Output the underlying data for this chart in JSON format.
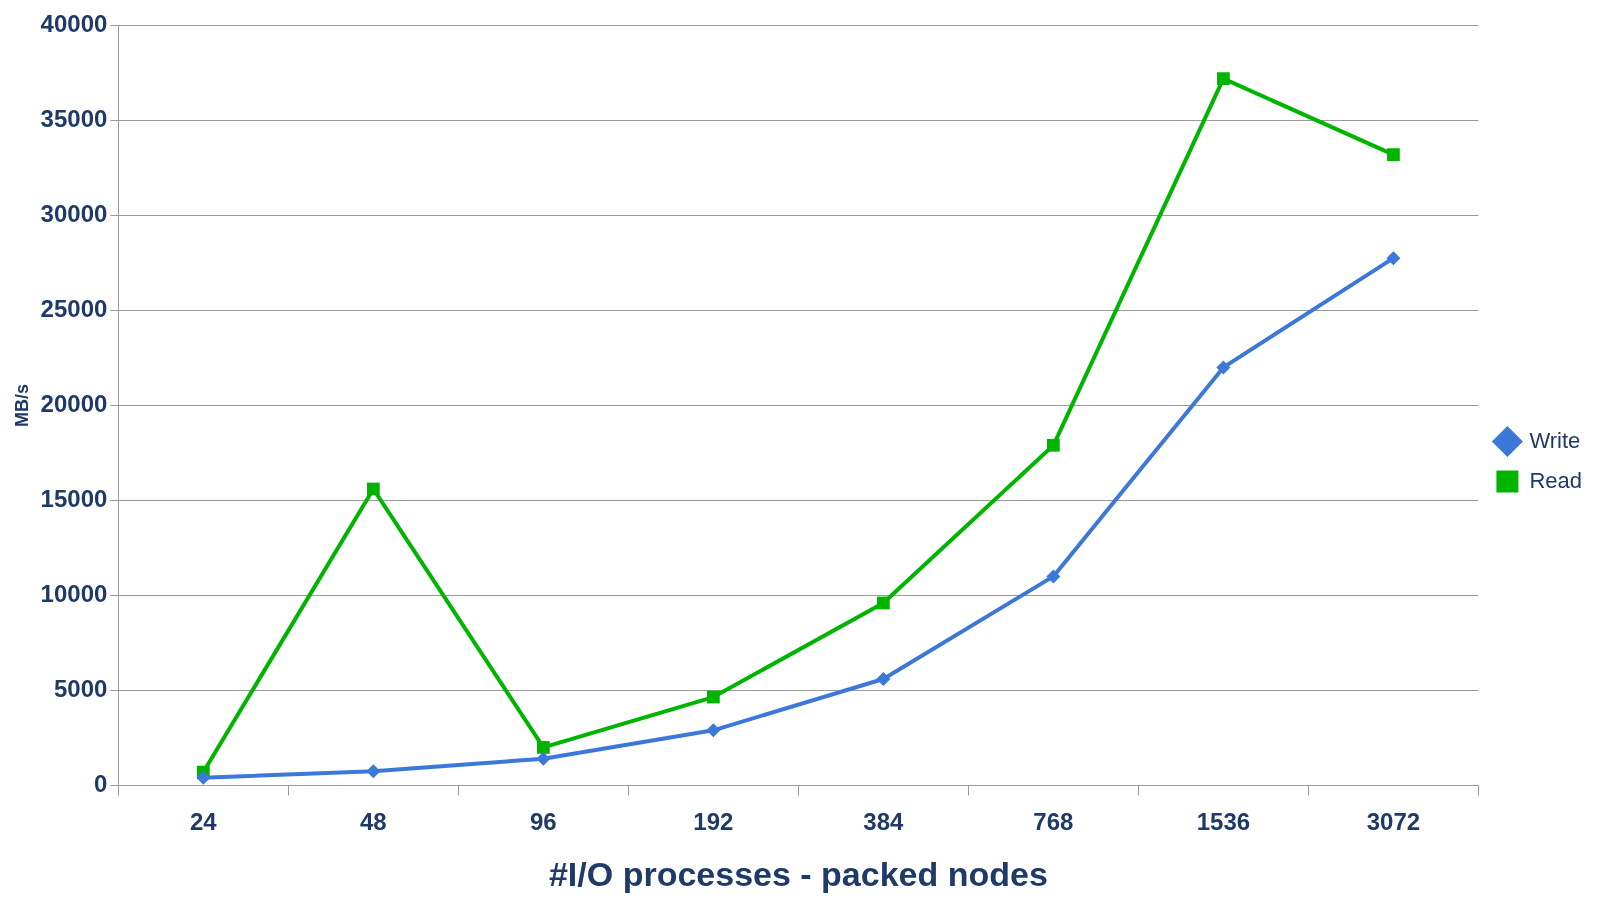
{
  "chart_data": {
    "type": "line",
    "xlabel": "#I/O processes - packed nodes",
    "ylabel": "MB/s",
    "categories": [
      "24",
      "48",
      "96",
      "192",
      "384",
      "768",
      "1536",
      "3072"
    ],
    "series": [
      {
        "name": "Write",
        "color": "#3c78d8",
        "marker": "diamond",
        "values": [
          400,
          750,
          1400,
          2900,
          5600,
          11000,
          22000,
          27750
        ]
      },
      {
        "name": "Read",
        "color": "#00b400",
        "marker": "square",
        "values": [
          700,
          15600,
          2000,
          4650,
          9600,
          17900,
          37200,
          33200
        ]
      }
    ],
    "ylim": [
      0,
      40000
    ],
    "yticks": [
      0,
      5000,
      10000,
      15000,
      20000,
      25000,
      30000,
      35000,
      40000
    ],
    "grid": "y",
    "legend": "right",
    "line_style": "solid"
  }
}
